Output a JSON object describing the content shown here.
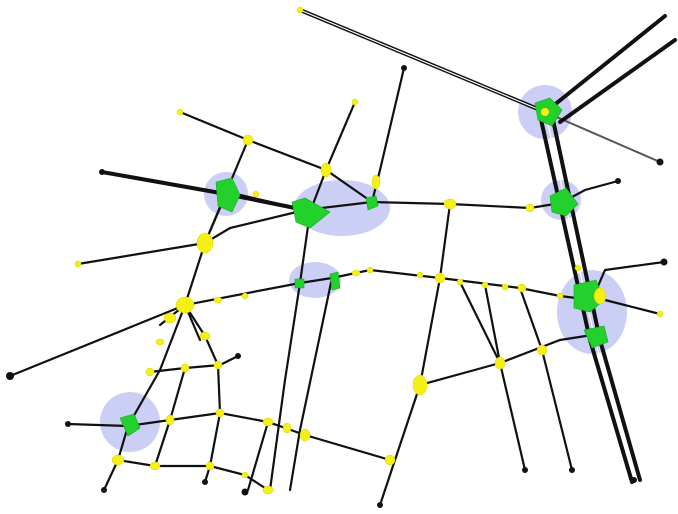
{
  "figure": {
    "kind": "road network graph",
    "colors": {
      "background": "#ffffff",
      "road": "#111111",
      "hub_highlight": "#b9bdf2",
      "junction_major": "#22d12b",
      "junction_minor": "#f4ef14",
      "endpoint": "#111111"
    }
  }
}
